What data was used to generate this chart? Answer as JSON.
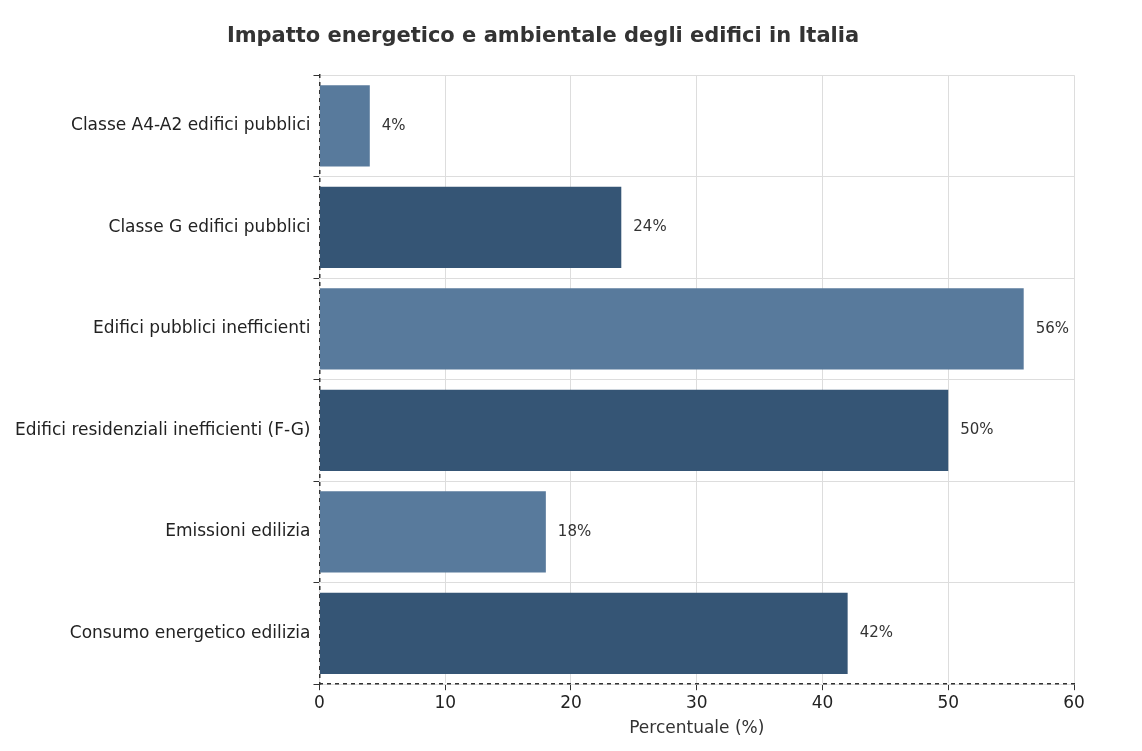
{
  "chart_data": {
    "type": "bar",
    "orientation": "horizontal",
    "title": "Impatto energetico e ambientale degli edifici in Italia",
    "xlabel": "Percentuale (%)",
    "categories": [
      "Classe A4-A2 edifici pubblici",
      "Classe G edifici pubblici",
      "Edifici pubblici inefficienti",
      "Edifici residenziali inefficienti (F-G)",
      "Emissioni edilizia",
      "Consumo energetico edilizia"
    ],
    "values": [
      4,
      24,
      56,
      50,
      18,
      42
    ],
    "colors": [
      "#587a9c",
      "#355575",
      "#587a9c",
      "#355575",
      "#587a9c",
      "#355575"
    ],
    "value_labels": [
      "4%",
      "24%",
      "56%",
      "50%",
      "18%",
      "42%"
    ],
    "xlim": [
      0,
      60
    ],
    "xticks": [
      0,
      10,
      20,
      30,
      40,
      50,
      60
    ],
    "grid": true,
    "legend": false
  }
}
